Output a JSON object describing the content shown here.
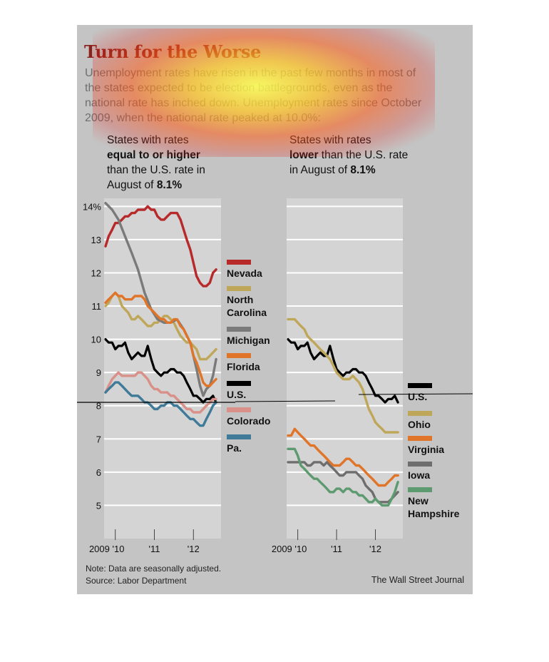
{
  "title": "Turn for the Worse",
  "subtitle": "Unemployment rates have risen in the past few months in most of the states expected to be election battlegrounds, even as the national rate has inched down. Unemployment rates since October 2009, when the national rate peaked at 10.0%:",
  "panel_left": {
    "header_pre": "States with rates",
    "header_bold": "equal to or higher",
    "header_mid": "than the U.S. rate in August of",
    "header_value": "8.1%"
  },
  "panel_right": {
    "header_pre": "States with rates",
    "header_bold": "lower",
    "header_mid": "than the U.S. rate in August of",
    "header_value": "8.1%"
  },
  "note": "Note: Data are seasonally adjusted.",
  "source": "Source: Labor Department",
  "credit": "The Wall Street Journal",
  "colors": {
    "background": "#c4c4c4",
    "plot": "#d4d4d4",
    "title": "#8b1f1a",
    "Nevada": "#b8292a",
    "North Carolina": "#bfa75a",
    "Michigan": "#7a7a7a",
    "Florida": "#e07428",
    "U.S.": "#000000",
    "Colorado": "#d99088",
    "Pa.": "#3f7a99",
    "Ohio": "#bfa75a",
    "Virginia": "#e07428",
    "Iowa": "#6e6e6e",
    "New Hampshire": "#5e9a70"
  },
  "chart_data": [
    {
      "type": "line",
      "y_tick_labels": [
        "14%",
        "13",
        "12",
        "11",
        "10",
        "9",
        "8",
        "7",
        "6",
        "5"
      ],
      "y_ticks": [
        14,
        13,
        12,
        11,
        10,
        9,
        8,
        7,
        6,
        5
      ],
      "ylim": [
        4,
        14.2
      ],
      "x_tick_labels": [
        "2009 '10",
        "'11",
        "'12"
      ],
      "x_ticks": [
        2010.0,
        2011.0,
        2012.0
      ],
      "xlim": [
        2009.75,
        2012.67
      ],
      "series": [
        {
          "name": "Nevada",
          "x": [
            2009.75,
            2009.83,
            2009.92,
            2010.0,
            2010.08,
            2010.17,
            2010.25,
            2010.33,
            2010.42,
            2010.5,
            2010.58,
            2010.67,
            2010.75,
            2010.83,
            2010.92,
            2011.0,
            2011.08,
            2011.17,
            2011.25,
            2011.33,
            2011.42,
            2011.5,
            2011.58,
            2011.67,
            2011.75,
            2011.83,
            2011.92,
            2012.0,
            2012.08,
            2012.17,
            2012.25,
            2012.33,
            2012.42,
            2012.5,
            2012.58
          ],
          "values": [
            12.8,
            13.1,
            13.3,
            13.5,
            13.5,
            13.6,
            13.7,
            13.7,
            13.8,
            13.8,
            13.9,
            13.9,
            13.9,
            14.0,
            13.9,
            13.9,
            13.7,
            13.6,
            13.6,
            13.7,
            13.8,
            13.8,
            13.8,
            13.6,
            13.3,
            13.0,
            12.7,
            12.3,
            11.9,
            11.7,
            11.6,
            11.6,
            11.7,
            12.0,
            12.1
          ]
        },
        {
          "name": "North Carolina",
          "x": [
            2009.75,
            2009.83,
            2009.92,
            2010.0,
            2010.08,
            2010.17,
            2010.25,
            2010.33,
            2010.42,
            2010.5,
            2010.58,
            2010.67,
            2010.75,
            2010.83,
            2010.92,
            2011.0,
            2011.08,
            2011.17,
            2011.25,
            2011.33,
            2011.42,
            2011.5,
            2011.58,
            2011.67,
            2011.75,
            2011.83,
            2011.92,
            2012.0,
            2012.08,
            2012.17,
            2012.25,
            2012.33,
            2012.42,
            2012.5,
            2012.58
          ],
          "values": [
            11.0,
            11.1,
            11.3,
            11.4,
            11.3,
            11.0,
            10.9,
            10.8,
            10.6,
            10.6,
            10.7,
            10.6,
            10.5,
            10.4,
            10.4,
            10.5,
            10.5,
            10.6,
            10.7,
            10.7,
            10.6,
            10.5,
            10.3,
            10.1,
            10.0,
            9.9,
            9.9,
            9.8,
            9.7,
            9.4,
            9.4,
            9.4,
            9.5,
            9.6,
            9.7
          ]
        },
        {
          "name": "Michigan",
          "x": [
            2009.75,
            2009.92,
            2010.08,
            2010.25,
            2010.42,
            2010.58,
            2010.75,
            2010.92,
            2011.08,
            2011.25,
            2011.42,
            2011.58,
            2011.75,
            2011.92,
            2012.08,
            2012.17,
            2012.25,
            2012.33,
            2012.42,
            2012.5,
            2012.58
          ],
          "values": [
            14.1,
            13.9,
            13.6,
            13.1,
            12.6,
            12.1,
            11.4,
            10.9,
            10.6,
            10.5,
            10.5,
            10.6,
            10.3,
            9.9,
            9.1,
            8.6,
            8.3,
            8.5,
            8.6,
            8.9,
            9.4
          ]
        },
        {
          "name": "Florida",
          "x": [
            2009.75,
            2009.83,
            2009.92,
            2010.0,
            2010.08,
            2010.17,
            2010.25,
            2010.33,
            2010.42,
            2010.5,
            2010.58,
            2010.67,
            2010.75,
            2010.83,
            2010.92,
            2011.0,
            2011.08,
            2011.17,
            2011.25,
            2011.33,
            2011.42,
            2011.5,
            2011.58,
            2011.67,
            2011.75,
            2011.83,
            2011.92,
            2012.0,
            2012.08,
            2012.17,
            2012.25,
            2012.33,
            2012.42,
            2012.5,
            2012.58
          ],
          "values": [
            11.1,
            11.2,
            11.3,
            11.4,
            11.3,
            11.3,
            11.2,
            11.2,
            11.2,
            11.3,
            11.3,
            11.3,
            11.2,
            11.0,
            10.9,
            10.8,
            10.7,
            10.6,
            10.6,
            10.5,
            10.5,
            10.6,
            10.6,
            10.4,
            10.3,
            10.1,
            9.9,
            9.5,
            9.3,
            9.0,
            8.7,
            8.6,
            8.6,
            8.7,
            8.8
          ]
        },
        {
          "name": "U.S.",
          "x": [
            2009.75,
            2009.83,
            2009.92,
            2010.0,
            2010.08,
            2010.17,
            2010.25,
            2010.33,
            2010.42,
            2010.5,
            2010.58,
            2010.67,
            2010.75,
            2010.83,
            2010.92,
            2011.0,
            2011.08,
            2011.17,
            2011.25,
            2011.33,
            2011.42,
            2011.5,
            2011.58,
            2011.67,
            2011.75,
            2011.83,
            2011.92,
            2012.0,
            2012.08,
            2012.17,
            2012.25,
            2012.33,
            2012.42,
            2012.5,
            2012.58
          ],
          "values": [
            10.0,
            9.9,
            9.9,
            9.7,
            9.8,
            9.8,
            9.9,
            9.6,
            9.4,
            9.5,
            9.6,
            9.5,
            9.5,
            9.8,
            9.4,
            9.1,
            9.0,
            8.9,
            9.0,
            9.0,
            9.1,
            9.1,
            9.0,
            9.0,
            8.9,
            8.7,
            8.5,
            8.3,
            8.3,
            8.2,
            8.1,
            8.2,
            8.2,
            8.3,
            8.1
          ]
        },
        {
          "name": "Colorado",
          "x": [
            2009.75,
            2009.83,
            2009.92,
            2010.0,
            2010.08,
            2010.17,
            2010.25,
            2010.33,
            2010.42,
            2010.5,
            2010.58,
            2010.67,
            2010.75,
            2010.83,
            2010.92,
            2011.0,
            2011.08,
            2011.17,
            2011.25,
            2011.33,
            2011.42,
            2011.5,
            2011.58,
            2011.67,
            2011.75,
            2011.83,
            2011.92,
            2012.0,
            2012.08,
            2012.17,
            2012.25,
            2012.33,
            2012.42,
            2012.5,
            2012.58
          ],
          "values": [
            8.4,
            8.6,
            8.8,
            8.9,
            9.0,
            8.9,
            8.9,
            8.9,
            8.9,
            8.9,
            9.0,
            9.0,
            8.9,
            8.8,
            8.6,
            8.5,
            8.5,
            8.4,
            8.4,
            8.4,
            8.3,
            8.3,
            8.2,
            8.1,
            8.0,
            7.9,
            7.9,
            7.8,
            7.8,
            7.8,
            7.9,
            8.0,
            8.1,
            8.2,
            8.2
          ]
        },
        {
          "name": "Pa.",
          "x": [
            2009.75,
            2009.83,
            2009.92,
            2010.0,
            2010.08,
            2010.17,
            2010.25,
            2010.33,
            2010.42,
            2010.5,
            2010.58,
            2010.67,
            2010.75,
            2010.83,
            2010.92,
            2011.0,
            2011.08,
            2011.17,
            2011.25,
            2011.33,
            2011.42,
            2011.5,
            2011.58,
            2011.67,
            2011.75,
            2011.83,
            2011.92,
            2012.0,
            2012.08,
            2012.17,
            2012.25,
            2012.33,
            2012.42,
            2012.5,
            2012.58
          ],
          "values": [
            8.4,
            8.5,
            8.6,
            8.7,
            8.7,
            8.6,
            8.5,
            8.4,
            8.3,
            8.3,
            8.3,
            8.2,
            8.1,
            8.1,
            8.0,
            7.9,
            7.9,
            8.0,
            8.0,
            8.1,
            8.1,
            8.0,
            8.0,
            7.9,
            7.8,
            7.7,
            7.6,
            7.6,
            7.5,
            7.4,
            7.4,
            7.6,
            7.8,
            8.0,
            8.1
          ]
        }
      ],
      "legend": [
        "Nevada",
        "North Carolina",
        "Michigan",
        "Florida",
        "U.S.",
        "Colorado",
        "Pa."
      ],
      "grid": true
    },
    {
      "type": "line",
      "x_tick_labels": [
        "2009 '10",
        "'11",
        "'12"
      ],
      "x_ticks": [
        2010.0,
        2011.0,
        2012.0
      ],
      "xlim": [
        2009.75,
        2012.67
      ],
      "ylim": [
        4,
        14.2
      ],
      "series": [
        {
          "name": "U.S.",
          "x": [
            2009.75,
            2009.83,
            2009.92,
            2010.0,
            2010.08,
            2010.17,
            2010.25,
            2010.33,
            2010.42,
            2010.5,
            2010.58,
            2010.67,
            2010.75,
            2010.83,
            2010.92,
            2011.0,
            2011.08,
            2011.17,
            2011.25,
            2011.33,
            2011.42,
            2011.5,
            2011.58,
            2011.67,
            2011.75,
            2011.83,
            2011.92,
            2012.0,
            2012.08,
            2012.17,
            2012.25,
            2012.33,
            2012.42,
            2012.5,
            2012.58
          ],
          "values": [
            10.0,
            9.9,
            9.9,
            9.7,
            9.8,
            9.8,
            9.9,
            9.6,
            9.4,
            9.5,
            9.6,
            9.5,
            9.5,
            9.8,
            9.4,
            9.1,
            9.0,
            8.9,
            9.0,
            9.0,
            9.1,
            9.1,
            9.0,
            9.0,
            8.9,
            8.7,
            8.5,
            8.3,
            8.3,
            8.2,
            8.1,
            8.2,
            8.2,
            8.3,
            8.1
          ]
        },
        {
          "name": "Ohio",
          "x": [
            2009.75,
            2009.83,
            2009.92,
            2010.0,
            2010.08,
            2010.17,
            2010.25,
            2010.33,
            2010.42,
            2010.5,
            2010.58,
            2010.67,
            2010.75,
            2010.83,
            2010.92,
            2011.0,
            2011.08,
            2011.17,
            2011.25,
            2011.33,
            2011.42,
            2011.5,
            2011.58,
            2011.67,
            2011.75,
            2011.83,
            2011.92,
            2012.0,
            2012.08,
            2012.17,
            2012.25,
            2012.33,
            2012.42,
            2012.5,
            2012.58
          ],
          "values": [
            10.6,
            10.6,
            10.6,
            10.5,
            10.4,
            10.3,
            10.1,
            10.0,
            9.9,
            9.8,
            9.7,
            9.6,
            9.5,
            9.4,
            9.2,
            9.0,
            8.9,
            8.8,
            8.8,
            8.8,
            8.9,
            8.8,
            8.7,
            8.5,
            8.2,
            7.9,
            7.7,
            7.5,
            7.4,
            7.3,
            7.2,
            7.2,
            7.2,
            7.2,
            7.2
          ]
        },
        {
          "name": "Virginia",
          "x": [
            2009.75,
            2009.83,
            2009.92,
            2010.0,
            2010.08,
            2010.17,
            2010.25,
            2010.33,
            2010.42,
            2010.5,
            2010.58,
            2010.67,
            2010.75,
            2010.83,
            2010.92,
            2011.0,
            2011.08,
            2011.17,
            2011.25,
            2011.33,
            2011.42,
            2011.5,
            2011.58,
            2011.67,
            2011.75,
            2011.83,
            2011.92,
            2012.0,
            2012.08,
            2012.17,
            2012.25,
            2012.33,
            2012.42,
            2012.5,
            2012.58
          ],
          "values": [
            7.1,
            7.1,
            7.3,
            7.2,
            7.1,
            7.0,
            6.9,
            6.8,
            6.8,
            6.7,
            6.6,
            6.5,
            6.4,
            6.3,
            6.2,
            6.2,
            6.2,
            6.3,
            6.4,
            6.4,
            6.3,
            6.2,
            6.2,
            6.1,
            6.0,
            5.9,
            5.8,
            5.7,
            5.6,
            5.6,
            5.6,
            5.7,
            5.8,
            5.9,
            5.9
          ]
        },
        {
          "name": "Iowa",
          "x": [
            2009.75,
            2009.83,
            2009.92,
            2010.0,
            2010.08,
            2010.17,
            2010.25,
            2010.33,
            2010.42,
            2010.5,
            2010.58,
            2010.67,
            2010.75,
            2010.83,
            2010.92,
            2011.0,
            2011.08,
            2011.17,
            2011.25,
            2011.33,
            2011.42,
            2011.5,
            2011.58,
            2011.67,
            2011.75,
            2011.83,
            2011.92,
            2012.0,
            2012.08,
            2012.17,
            2012.25,
            2012.33,
            2012.42,
            2012.5,
            2012.58
          ],
          "values": [
            6.3,
            6.3,
            6.3,
            6.3,
            6.3,
            6.3,
            6.2,
            6.2,
            6.3,
            6.3,
            6.3,
            6.2,
            6.3,
            6.2,
            6.1,
            6.0,
            5.9,
            5.9,
            6.0,
            6.0,
            6.0,
            6.0,
            5.9,
            5.8,
            5.6,
            5.5,
            5.4,
            5.2,
            5.1,
            5.1,
            5.1,
            5.1,
            5.2,
            5.3,
            5.4
          ]
        },
        {
          "name": "New Hampshire",
          "x": [
            2009.75,
            2009.83,
            2009.92,
            2010.0,
            2010.08,
            2010.17,
            2010.25,
            2010.33,
            2010.42,
            2010.5,
            2010.58,
            2010.67,
            2010.75,
            2010.83,
            2010.92,
            2011.0,
            2011.08,
            2011.17,
            2011.25,
            2011.33,
            2011.42,
            2011.5,
            2011.58,
            2011.67,
            2011.75,
            2011.83,
            2011.92,
            2012.0,
            2012.08,
            2012.17,
            2012.25,
            2012.33,
            2012.42,
            2012.5,
            2012.58
          ],
          "values": [
            6.7,
            6.7,
            6.7,
            6.5,
            6.2,
            6.1,
            6.0,
            5.9,
            5.8,
            5.8,
            5.7,
            5.6,
            5.5,
            5.4,
            5.4,
            5.5,
            5.5,
            5.4,
            5.5,
            5.5,
            5.4,
            5.4,
            5.3,
            5.3,
            5.2,
            5.1,
            5.1,
            5.2,
            5.1,
            5.0,
            5.0,
            5.0,
            5.2,
            5.4,
            5.7
          ]
        }
      ],
      "legend": [
        "U.S.",
        "Ohio",
        "Virginia",
        "Iowa",
        "New Hampshire"
      ],
      "grid": true
    }
  ]
}
